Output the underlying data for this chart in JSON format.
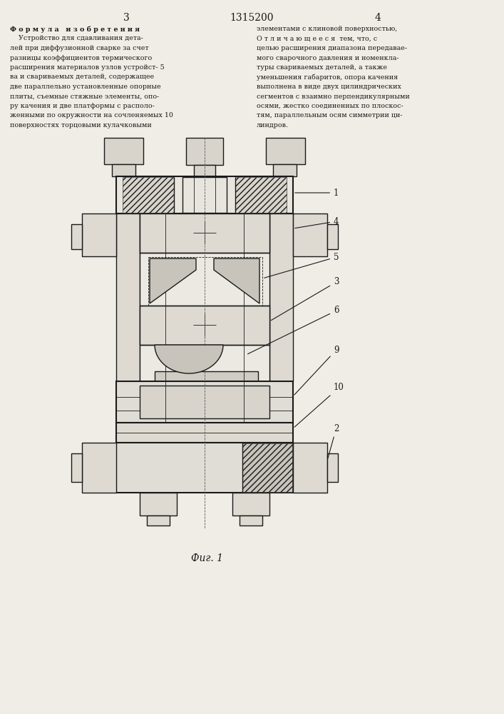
{
  "page_width": 7.07,
  "page_height": 10.0,
  "bg_color": "#f0ede6",
  "line_color": "#1a1a1a",
  "header_3": "3",
  "header_title": "1315200",
  "header_4": "4",
  "fig_label": "Фиг. 1"
}
